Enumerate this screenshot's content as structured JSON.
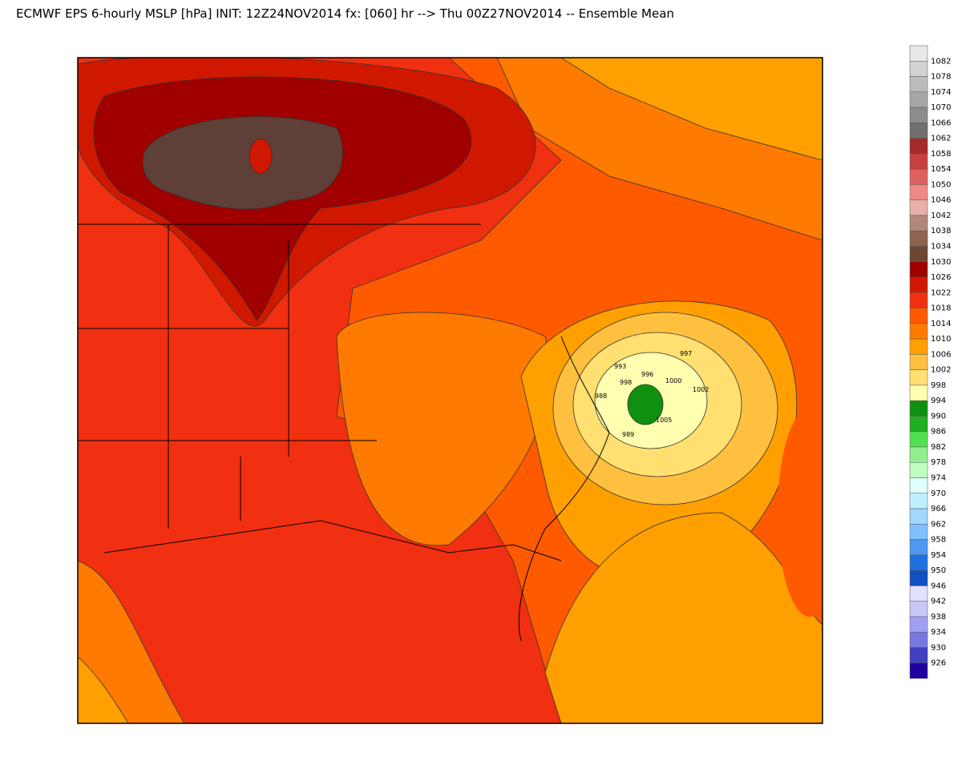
{
  "header": {
    "title": "ECMWF EPS 6-hourly MSLP [hPa] INIT: 12Z24NOV2014 fx: [060] hr --> Thu 00Z27NOV2014 -- Ensemble Mean"
  },
  "map": {
    "labels": [
      "997",
      "993",
      "996",
      "1000",
      "1002",
      "1005",
      "989",
      "988",
      "998"
    ]
  },
  "colorbar": {
    "labels": [
      1082,
      1078,
      1074,
      1070,
      1066,
      1062,
      1058,
      1054,
      1050,
      1046,
      1042,
      1038,
      1034,
      1030,
      1026,
      1022,
      1018,
      1014,
      1010,
      1006,
      1002,
      998,
      994,
      990,
      986,
      982,
      978,
      974,
      970,
      966,
      962,
      958,
      954,
      950,
      946,
      942,
      938,
      934,
      930,
      926
    ],
    "colors": [
      "#e8e8e8",
      "#d2d2d2",
      "#bcbcbc",
      "#a6a6a6",
      "#8c8c8c",
      "#707070",
      "#a52a2a",
      "#c84040",
      "#e06060",
      "#f08888",
      "#e8b0a8",
      "#b08878",
      "#8c6450",
      "#6e4634",
      "#a00000",
      "#d01800",
      "#f03010",
      "#ff5a00",
      "#ff7a00",
      "#ffa000",
      "#ffc040",
      "#ffe070",
      "#ffffb0",
      "#109010",
      "#20b020",
      "#50e050",
      "#90f090",
      "#c0ffc0",
      "#e0ffff",
      "#c0f0ff",
      "#a0d8ff",
      "#80c0ff",
      "#5098f0",
      "#2070e0",
      "#1050c0",
      "#e0e0ff",
      "#c8c8f8",
      "#a0a0f0",
      "#7878e0",
      "#4040c0",
      "#2000a0"
    ]
  }
}
